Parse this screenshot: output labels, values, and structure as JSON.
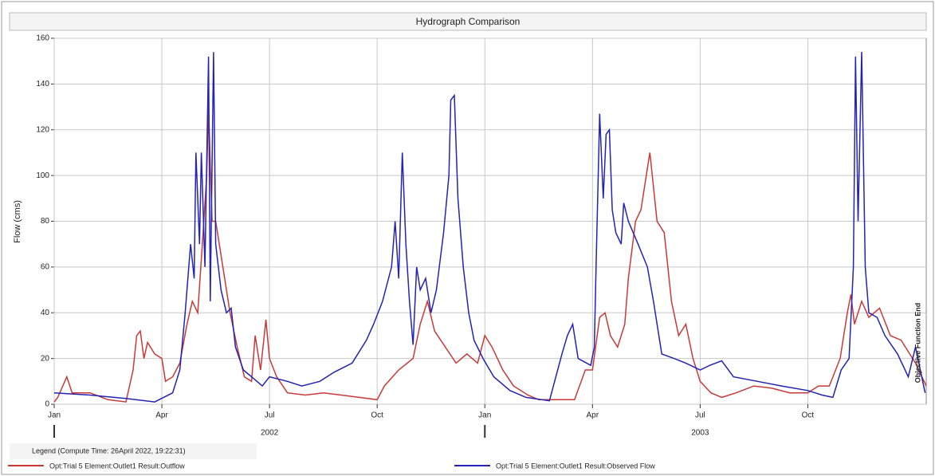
{
  "chart_data": {
    "type": "line",
    "title": "Hydrograph Comparison",
    "y_label": "Flow (cms)",
    "legend_title": "Legend (Compute Time: 26April 2022, 19:22:31)",
    "annotation": "Objective Function End",
    "xlim": [
      0,
      24.3
    ],
    "xticks": [
      {
        "value": 0,
        "label": "Jan"
      },
      {
        "value": 3,
        "label": "Apr"
      },
      {
        "value": 6,
        "label": "Jul"
      },
      {
        "value": 9,
        "label": "Oct"
      },
      {
        "value": 12,
        "label": "Jan"
      },
      {
        "value": 15,
        "label": "Apr"
      },
      {
        "value": 18,
        "label": "Jul"
      },
      {
        "value": 21,
        "label": "Oct"
      }
    ],
    "year_labels": [
      {
        "value": 6,
        "label": "2002"
      },
      {
        "value": 18,
        "label": "2003"
      }
    ],
    "ylim": [
      0,
      160
    ],
    "yticks": [
      0,
      20,
      40,
      60,
      80,
      100,
      120,
      140,
      160
    ],
    "grid": true,
    "series": [
      {
        "name": "Opt:Trial 5 Element:Outlet1 Result:Outflow",
        "color": "#c83a3a",
        "x": [
          0,
          0.1,
          0.35,
          0.5,
          1.0,
          1.5,
          2.0,
          2.2,
          2.3,
          2.4,
          2.5,
          2.6,
          2.8,
          3.0,
          3.1,
          3.3,
          3.5,
          3.7,
          3.85,
          4.0,
          4.15,
          4.25,
          4.3,
          4.4,
          4.5,
          4.7,
          4.9,
          5.1,
          5.3,
          5.5,
          5.6,
          5.75,
          5.9,
          6.0,
          6.2,
          6.5,
          7.0,
          7.5,
          8.0,
          8.5,
          9.0,
          9.2,
          9.6,
          10.0,
          10.2,
          10.4,
          10.6,
          10.9,
          11.2,
          11.5,
          11.8,
          12.0,
          12.2,
          12.5,
          12.8,
          13.2,
          13.5,
          14.0,
          14.5,
          14.8,
          15.0,
          15.2,
          15.35,
          15.5,
          15.7,
          15.9,
          16.0,
          16.2,
          16.35,
          16.5,
          16.6,
          16.8,
          17.0,
          17.2,
          17.4,
          17.6,
          17.8,
          18.0,
          18.3,
          18.6,
          19.0,
          19.5,
          20.0,
          20.5,
          21.0,
          21.3,
          21.6,
          21.9,
          22.1,
          22.2,
          22.3,
          22.5,
          22.7,
          23.0,
          23.3,
          23.6,
          24.0,
          24.3
        ],
        "values": [
          1,
          3,
          12,
          5,
          5,
          2,
          1,
          15,
          30,
          32,
          20,
          27,
          22,
          20,
          10,
          12,
          18,
          35,
          45,
          40,
          75,
          100,
          130,
          80,
          80,
          60,
          40,
          25,
          12,
          10,
          30,
          15,
          37,
          20,
          12,
          5,
          4,
          5,
          4,
          3,
          2,
          8,
          15,
          20,
          35,
          45,
          32,
          25,
          18,
          22,
          18,
          30,
          25,
          15,
          8,
          4,
          2,
          2,
          2,
          15,
          15,
          38,
          40,
          30,
          25,
          35,
          55,
          80,
          85,
          100,
          110,
          80,
          75,
          45,
          30,
          35,
          20,
          10,
          5,
          3,
          5,
          8,
          7,
          5,
          5,
          8,
          8,
          20,
          40,
          48,
          35,
          45,
          38,
          42,
          30,
          28,
          18,
          8
        ]
      },
      {
        "name": "Opt:Trial 5 Element:Outlet1 Result:Observed Flow",
        "color": "#2323b4",
        "x": [
          0,
          1,
          2,
          2.8,
          3.3,
          3.5,
          3.65,
          3.8,
          3.9,
          3.95,
          4.05,
          4.1,
          4.2,
          4.3,
          4.35,
          4.44,
          4.5,
          4.65,
          4.8,
          4.93,
          5.05,
          5.27,
          5.5,
          5.8,
          6.0,
          6.5,
          6.9,
          7.4,
          7.8,
          8.3,
          8.7,
          8.9,
          9.15,
          9.4,
          9.5,
          9.6,
          9.7,
          9.8,
          9.9,
          10.0,
          10.1,
          10.2,
          10.35,
          10.5,
          10.65,
          10.85,
          11.0,
          11.05,
          11.15,
          11.25,
          11.4,
          11.55,
          11.7,
          11.95,
          12.25,
          12.7,
          13.15,
          13.8,
          14.15,
          14.3,
          14.45,
          14.6,
          14.95,
          15.05,
          15.1,
          15.2,
          15.3,
          15.38,
          15.47,
          15.55,
          15.65,
          15.8,
          15.87,
          16.0,
          16.27,
          16.53,
          16.7,
          16.93,
          17.27,
          17.6,
          18.0,
          18.27,
          18.6,
          18.93,
          19.6,
          20.27,
          21.0,
          21.4,
          21.7,
          21.93,
          22.15,
          22.27,
          22.33,
          22.4,
          22.5,
          22.6,
          22.7,
          22.93,
          23.15,
          23.5,
          23.8,
          24.0,
          24.27
        ],
        "values": [
          5,
          4,
          2.5,
          1,
          5,
          15,
          40,
          70,
          55,
          110,
          70,
          110,
          60,
          152,
          45,
          154,
          70,
          50,
          40,
          42,
          25,
          15,
          12,
          8,
          12,
          10,
          8,
          10,
          14,
          18,
          28,
          35,
          45,
          60,
          80,
          55,
          110,
          70,
          45,
          26,
          60,
          50,
          55,
          40,
          50,
          75,
          100,
          133,
          135,
          90,
          60,
          40,
          28,
          20,
          12,
          6,
          3,
          1.5,
          22,
          30,
          35,
          20,
          17,
          25,
          60,
          127,
          90,
          118,
          120,
          85,
          75,
          70,
          88,
          80,
          70,
          60,
          45,
          22,
          20,
          18,
          15,
          17,
          19,
          12,
          10,
          8,
          6,
          4,
          3,
          15,
          20,
          60,
          152,
          80,
          154,
          60,
          40,
          38,
          30,
          22,
          12,
          25,
          5
        ]
      }
    ]
  }
}
